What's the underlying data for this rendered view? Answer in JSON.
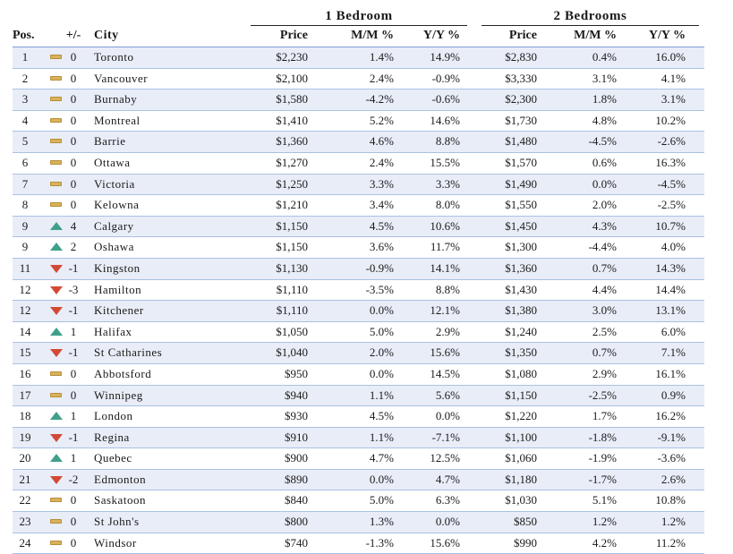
{
  "groups": {
    "one_bedroom": "1 Bedroom",
    "two_bedrooms": "2 Bedrooms"
  },
  "columns": {
    "pos": "Pos.",
    "change": "+/-",
    "city": "City",
    "price": "Price",
    "mm": "M/M %",
    "yy": "Y/Y %"
  },
  "colors": {
    "up": "#3fa08a",
    "down": "#d24a36",
    "flat": "#d9b25a"
  },
  "rows": [
    {
      "pos": "1",
      "trend": "flat",
      "change": "0",
      "city": "Toronto",
      "b1_price": "$2,230",
      "b1_mm": "1.4%",
      "b1_yy": "14.9%",
      "b2_price": "$2,830",
      "b2_mm": "0.4%",
      "b2_yy": "16.0%"
    },
    {
      "pos": "2",
      "trend": "flat",
      "change": "0",
      "city": "Vancouver",
      "b1_price": "$2,100",
      "b1_mm": "2.4%",
      "b1_yy": "-0.9%",
      "b2_price": "$3,330",
      "b2_mm": "3.1%",
      "b2_yy": "4.1%"
    },
    {
      "pos": "3",
      "trend": "flat",
      "change": "0",
      "city": "Burnaby",
      "b1_price": "$1,580",
      "b1_mm": "-4.2%",
      "b1_yy": "-0.6%",
      "b2_price": "$2,300",
      "b2_mm": "1.8%",
      "b2_yy": "3.1%"
    },
    {
      "pos": "4",
      "trend": "flat",
      "change": "0",
      "city": "Montreal",
      "b1_price": "$1,410",
      "b1_mm": "5.2%",
      "b1_yy": "14.6%",
      "b2_price": "$1,730",
      "b2_mm": "4.8%",
      "b2_yy": "10.2%"
    },
    {
      "pos": "5",
      "trend": "flat",
      "change": "0",
      "city": "Barrie",
      "b1_price": "$1,360",
      "b1_mm": "4.6%",
      "b1_yy": "8.8%",
      "b2_price": "$1,480",
      "b2_mm": "-4.5%",
      "b2_yy": "-2.6%"
    },
    {
      "pos": "6",
      "trend": "flat",
      "change": "0",
      "city": "Ottawa",
      "b1_price": "$1,270",
      "b1_mm": "2.4%",
      "b1_yy": "15.5%",
      "b2_price": "$1,570",
      "b2_mm": "0.6%",
      "b2_yy": "16.3%"
    },
    {
      "pos": "7",
      "trend": "flat",
      "change": "0",
      "city": "Victoria",
      "b1_price": "$1,250",
      "b1_mm": "3.3%",
      "b1_yy": "3.3%",
      "b2_price": "$1,490",
      "b2_mm": "0.0%",
      "b2_yy": "-4.5%"
    },
    {
      "pos": "8",
      "trend": "flat",
      "change": "0",
      "city": "Kelowna",
      "b1_price": "$1,210",
      "b1_mm": "3.4%",
      "b1_yy": "8.0%",
      "b2_price": "$1,550",
      "b2_mm": "2.0%",
      "b2_yy": "-2.5%"
    },
    {
      "pos": "9",
      "trend": "up",
      "change": "4",
      "city": "Calgary",
      "b1_price": "$1,150",
      "b1_mm": "4.5%",
      "b1_yy": "10.6%",
      "b2_price": "$1,450",
      "b2_mm": "4.3%",
      "b2_yy": "10.7%"
    },
    {
      "pos": "9",
      "trend": "up",
      "change": "2",
      "city": "Oshawa",
      "b1_price": "$1,150",
      "b1_mm": "3.6%",
      "b1_yy": "11.7%",
      "b2_price": "$1,300",
      "b2_mm": "-4.4%",
      "b2_yy": "4.0%"
    },
    {
      "pos": "11",
      "trend": "down",
      "change": "-1",
      "city": "Kingston",
      "b1_price": "$1,130",
      "b1_mm": "-0.9%",
      "b1_yy": "14.1%",
      "b2_price": "$1,360",
      "b2_mm": "0.7%",
      "b2_yy": "14.3%"
    },
    {
      "pos": "12",
      "trend": "down",
      "change": "-3",
      "city": "Hamilton",
      "b1_price": "$1,110",
      "b1_mm": "-3.5%",
      "b1_yy": "8.8%",
      "b2_price": "$1,430",
      "b2_mm": "4.4%",
      "b2_yy": "14.4%"
    },
    {
      "pos": "12",
      "trend": "down",
      "change": "-1",
      "city": "Kitchener",
      "b1_price": "$1,110",
      "b1_mm": "0.0%",
      "b1_yy": "12.1%",
      "b2_price": "$1,380",
      "b2_mm": "3.0%",
      "b2_yy": "13.1%"
    },
    {
      "pos": "14",
      "trend": "up",
      "change": "1",
      "city": "Halifax",
      "b1_price": "$1,050",
      "b1_mm": "5.0%",
      "b1_yy": "2.9%",
      "b2_price": "$1,240",
      "b2_mm": "2.5%",
      "b2_yy": "6.0%"
    },
    {
      "pos": "15",
      "trend": "down",
      "change": "-1",
      "city": "St Catharines",
      "b1_price": "$1,040",
      "b1_mm": "2.0%",
      "b1_yy": "15.6%",
      "b2_price": "$1,350",
      "b2_mm": "0.7%",
      "b2_yy": "7.1%"
    },
    {
      "pos": "16",
      "trend": "flat",
      "change": "0",
      "city": "Abbotsford",
      "b1_price": "$950",
      "b1_mm": "0.0%",
      "b1_yy": "14.5%",
      "b2_price": "$1,080",
      "b2_mm": "2.9%",
      "b2_yy": "16.1%"
    },
    {
      "pos": "17",
      "trend": "flat",
      "change": "0",
      "city": "Winnipeg",
      "b1_price": "$940",
      "b1_mm": "1.1%",
      "b1_yy": "5.6%",
      "b2_price": "$1,150",
      "b2_mm": "-2.5%",
      "b2_yy": "0.9%"
    },
    {
      "pos": "18",
      "trend": "up",
      "change": "1",
      "city": "London",
      "b1_price": "$930",
      "b1_mm": "4.5%",
      "b1_yy": "0.0%",
      "b2_price": "$1,220",
      "b2_mm": "1.7%",
      "b2_yy": "16.2%"
    },
    {
      "pos": "19",
      "trend": "down",
      "change": "-1",
      "city": "Regina",
      "b1_price": "$910",
      "b1_mm": "1.1%",
      "b1_yy": "-7.1%",
      "b2_price": "$1,100",
      "b2_mm": "-1.8%",
      "b2_yy": "-9.1%"
    },
    {
      "pos": "20",
      "trend": "up",
      "change": "1",
      "city": "Quebec",
      "b1_price": "$900",
      "b1_mm": "4.7%",
      "b1_yy": "12.5%",
      "b2_price": "$1,060",
      "b2_mm": "-1.9%",
      "b2_yy": "-3.6%"
    },
    {
      "pos": "21",
      "trend": "down",
      "change": "-2",
      "city": "Edmonton",
      "b1_price": "$890",
      "b1_mm": "0.0%",
      "b1_yy": "4.7%",
      "b2_price": "$1,180",
      "b2_mm": "-1.7%",
      "b2_yy": "2.6%"
    },
    {
      "pos": "22",
      "trend": "flat",
      "change": "0",
      "city": "Saskatoon",
      "b1_price": "$840",
      "b1_mm": "5.0%",
      "b1_yy": "6.3%",
      "b2_price": "$1,030",
      "b2_mm": "5.1%",
      "b2_yy": "10.8%"
    },
    {
      "pos": "23",
      "trend": "flat",
      "change": "0",
      "city": "St John's",
      "b1_price": "$800",
      "b1_mm": "1.3%",
      "b1_yy": "0.0%",
      "b2_price": "$850",
      "b2_mm": "1.2%",
      "b2_yy": "1.2%"
    },
    {
      "pos": "24",
      "trend": "flat",
      "change": "0",
      "city": "Windsor",
      "b1_price": "$740",
      "b1_mm": "-1.3%",
      "b1_yy": "15.6%",
      "b2_price": "$990",
      "b2_mm": "4.2%",
      "b2_yy": "11.2%"
    }
  ]
}
